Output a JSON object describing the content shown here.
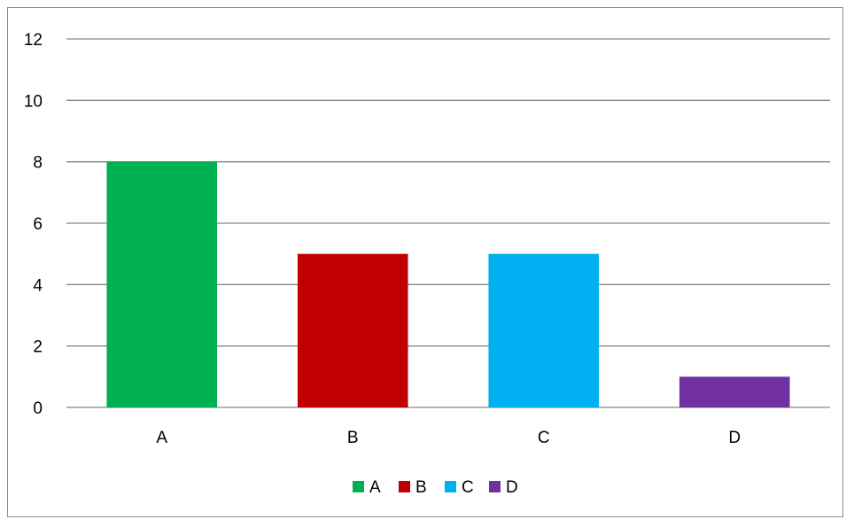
{
  "chart_data": {
    "type": "bar",
    "title": "",
    "xlabel": "",
    "ylabel": "",
    "categories": [
      "A",
      "B",
      "C",
      "D"
    ],
    "values": [
      8,
      5,
      5,
      1
    ],
    "colors": [
      "#00b050",
      "#c00000",
      "#00b0f0",
      "#7030a0"
    ],
    "ylim": [
      0,
      12
    ],
    "yticks": [
      "0",
      "2",
      "4",
      "6",
      "8",
      "10",
      "12"
    ],
    "grid": true,
    "legend": {
      "placement": "bottom",
      "entries": [
        "A",
        "B",
        "C",
        "D"
      ]
    }
  }
}
